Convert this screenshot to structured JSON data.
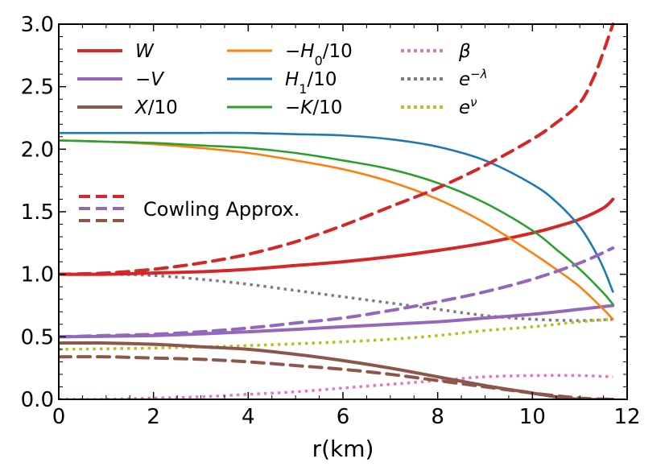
{
  "chart_data": {
    "type": "line",
    "xlabel": "r(km)",
    "ylabel": "",
    "xlim": [
      0,
      12
    ],
    "ylim": [
      0,
      3.0
    ],
    "xticks": [
      "0",
      "2",
      "4",
      "6",
      "8",
      "10",
      "12"
    ],
    "yticks": [
      "0.0",
      "0.5",
      "1.0",
      "1.5",
      "2.0",
      "2.5",
      "3.0"
    ],
    "grid": false,
    "legend_placement": "top",
    "series": [
      {
        "name": "W",
        "style": "solid",
        "color": "#d62728",
        "x": [
          0,
          1,
          2,
          3,
          4,
          5,
          6,
          7,
          8,
          9,
          10,
          10.5,
          11,
          11.5,
          11.7
        ],
        "y": [
          1.0,
          1.0,
          1.01,
          1.02,
          1.04,
          1.07,
          1.1,
          1.14,
          1.19,
          1.25,
          1.33,
          1.38,
          1.44,
          1.53,
          1.6
        ]
      },
      {
        "name": "-V",
        "style": "solid",
        "color": "#9467bd",
        "x": [
          0,
          2,
          4,
          6,
          8,
          9,
          10,
          11,
          11.7
        ],
        "y": [
          0.5,
          0.51,
          0.54,
          0.58,
          0.62,
          0.65,
          0.68,
          0.72,
          0.75
        ]
      },
      {
        "name": "X/10",
        "style": "solid",
        "color": "#8c564b",
        "x": [
          0,
          1,
          2,
          3,
          4,
          5,
          6,
          7,
          8,
          9,
          10,
          10.5,
          11,
          11.7
        ],
        "y": [
          0.45,
          0.45,
          0.44,
          0.42,
          0.4,
          0.36,
          0.31,
          0.25,
          0.18,
          0.11,
          0.05,
          0.02,
          0.0,
          0.0
        ]
      },
      {
        "name": "-H₀/10",
        "style": "solid",
        "color": "#ff7f0e",
        "x": [
          0,
          1,
          2,
          3,
          4,
          5,
          6,
          7,
          8,
          9,
          10,
          10.5,
          11,
          11.5,
          11.7
        ],
        "y": [
          2.07,
          2.06,
          2.04,
          2.01,
          1.97,
          1.91,
          1.84,
          1.74,
          1.6,
          1.41,
          1.17,
          1.04,
          0.9,
          0.72,
          0.64
        ]
      },
      {
        "name": "H₁/10",
        "style": "solid",
        "color": "#1f77b4",
        "x": [
          0,
          1,
          2,
          3,
          4,
          5,
          6,
          7,
          8,
          9,
          10,
          10.5,
          11,
          11.3,
          11.5,
          11.7
        ],
        "y": [
          2.13,
          2.13,
          2.13,
          2.13,
          2.13,
          2.12,
          2.11,
          2.08,
          2.02,
          1.91,
          1.72,
          1.58,
          1.38,
          1.2,
          1.05,
          0.86
        ]
      },
      {
        "name": "-K/10",
        "style": "solid",
        "color": "#2ca02c",
        "x": [
          0,
          1,
          2,
          3,
          4,
          5,
          6,
          7,
          8,
          9,
          10,
          10.5,
          11,
          11.5,
          11.7
        ],
        "y": [
          2.07,
          2.06,
          2.05,
          2.03,
          2.01,
          1.97,
          1.91,
          1.84,
          1.73,
          1.57,
          1.35,
          1.2,
          1.04,
          0.85,
          0.76
        ]
      },
      {
        "name": "β",
        "style": "dotted",
        "color": "#e377c2",
        "x": [
          0,
          1,
          2,
          3,
          4,
          5,
          6,
          7,
          8,
          9,
          10,
          11,
          11.7
        ],
        "y": [
          0.0,
          0.0,
          0.01,
          0.02,
          0.04,
          0.06,
          0.09,
          0.12,
          0.15,
          0.18,
          0.19,
          0.19,
          0.18
        ]
      },
      {
        "name": "e^{−λ}",
        "style": "dotted",
        "color": "#7f7f7f",
        "x": [
          0,
          1,
          2,
          3,
          4,
          5,
          6,
          7,
          8,
          9,
          10,
          11,
          11.7
        ],
        "y": [
          1.0,
          1.0,
          0.99,
          0.96,
          0.92,
          0.87,
          0.82,
          0.77,
          0.72,
          0.67,
          0.64,
          0.63,
          0.64
        ]
      },
      {
        "name": "e^{ν}",
        "style": "dotted",
        "color": "#bcbd22",
        "x": [
          0,
          2,
          4,
          6,
          7,
          8,
          9,
          10,
          11,
          11.7
        ],
        "y": [
          0.4,
          0.41,
          0.43,
          0.46,
          0.48,
          0.51,
          0.55,
          0.58,
          0.62,
          0.64
        ]
      },
      {
        "name": "W (Cowling Approx.)",
        "style": "dashed",
        "color": "#d62728",
        "x": [
          0,
          1,
          2,
          3,
          4,
          5,
          6,
          7,
          8,
          9,
          10,
          10.5,
          11,
          11.3,
          11.5,
          11.7
        ],
        "y": [
          1.0,
          1.01,
          1.04,
          1.09,
          1.16,
          1.26,
          1.39,
          1.54,
          1.69,
          1.87,
          2.08,
          2.21,
          2.37,
          2.58,
          2.78,
          3.0
        ]
      },
      {
        "name": "-V (Cowling Approx.)",
        "style": "dashed",
        "color": "#9467bd",
        "x": [
          0,
          1,
          2,
          3,
          4,
          5,
          6,
          7,
          8,
          9,
          10,
          11,
          11.7
        ],
        "y": [
          0.5,
          0.51,
          0.52,
          0.54,
          0.57,
          0.61,
          0.65,
          0.71,
          0.78,
          0.86,
          0.96,
          1.09,
          1.21
        ]
      },
      {
        "name": "X/10 (Cowling Approx.)",
        "style": "dashed",
        "color": "#8c564b",
        "x": [
          0,
          1,
          2,
          3,
          4,
          5,
          6,
          7,
          8,
          9,
          10,
          11,
          11.7
        ],
        "y": [
          0.34,
          0.34,
          0.33,
          0.32,
          0.3,
          0.27,
          0.24,
          0.2,
          0.15,
          0.1,
          0.05,
          0.01,
          0.0
        ]
      }
    ],
    "legend": {
      "entries": [
        {
          "label": "W",
          "color": "#d62728",
          "style": "solid"
        },
        {
          "label": "−V",
          "color": "#9467bd",
          "style": "solid"
        },
        {
          "label": "X/10",
          "color": "#8c564b",
          "style": "solid"
        },
        {
          "label": "−H₀/10",
          "color": "#ff7f0e",
          "style": "solid"
        },
        {
          "label": "H₁/10",
          "color": "#1f77b4",
          "style": "solid"
        },
        {
          "label": "−K/10",
          "color": "#2ca02c",
          "style": "solid"
        },
        {
          "label": "β",
          "color": "#e377c2",
          "style": "dotted"
        },
        {
          "label": "e−λ",
          "color": "#7f7f7f",
          "style": "dotted"
        },
        {
          "label": "eν",
          "color": "#bcbd22",
          "style": "dotted"
        }
      ],
      "cowling_label": "Cowling Approx.",
      "cowling_colors": [
        "#d62728",
        "#9467bd",
        "#8c564b"
      ]
    }
  }
}
